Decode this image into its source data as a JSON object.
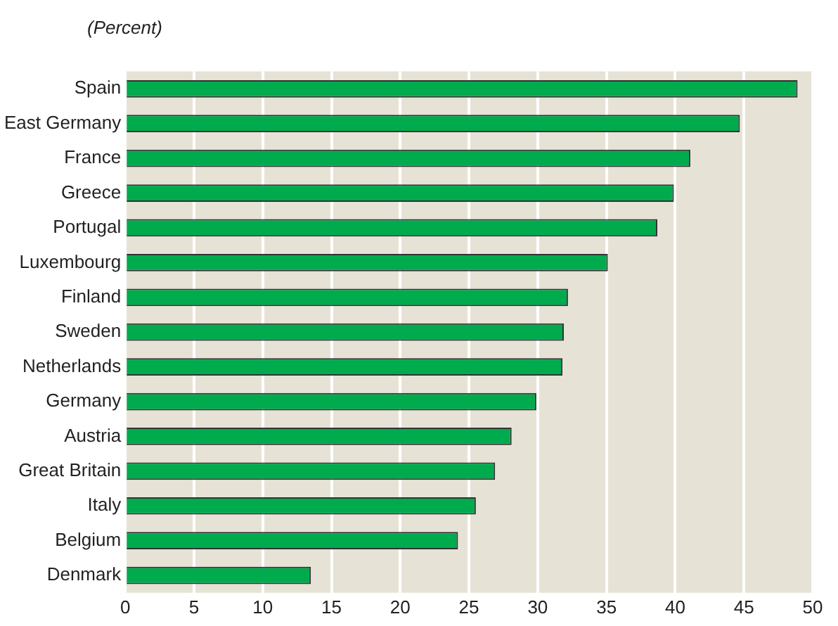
{
  "chart_data": {
    "type": "bar",
    "orientation": "horizontal",
    "title": "(Percent)",
    "categories": [
      "Spain",
      "East Germany",
      "France",
      "Greece",
      "Portugal",
      "Luxembourg",
      "Finland",
      "Sweden",
      "Netherlands",
      "Germany",
      "Austria",
      "Great Britain",
      "Italy",
      "Belgium",
      "Denmark"
    ],
    "values": [
      48.9,
      44.7,
      41.1,
      39.9,
      38.7,
      35.1,
      32.2,
      31.9,
      31.8,
      29.9,
      28.1,
      26.9,
      25.5,
      24.2,
      13.5
    ],
    "color": "#00ab4e",
    "xlim": [
      0,
      50
    ],
    "xticks": [
      0,
      5,
      10,
      15,
      20,
      25,
      30,
      35,
      40,
      45,
      50
    ],
    "grid": "x"
  }
}
